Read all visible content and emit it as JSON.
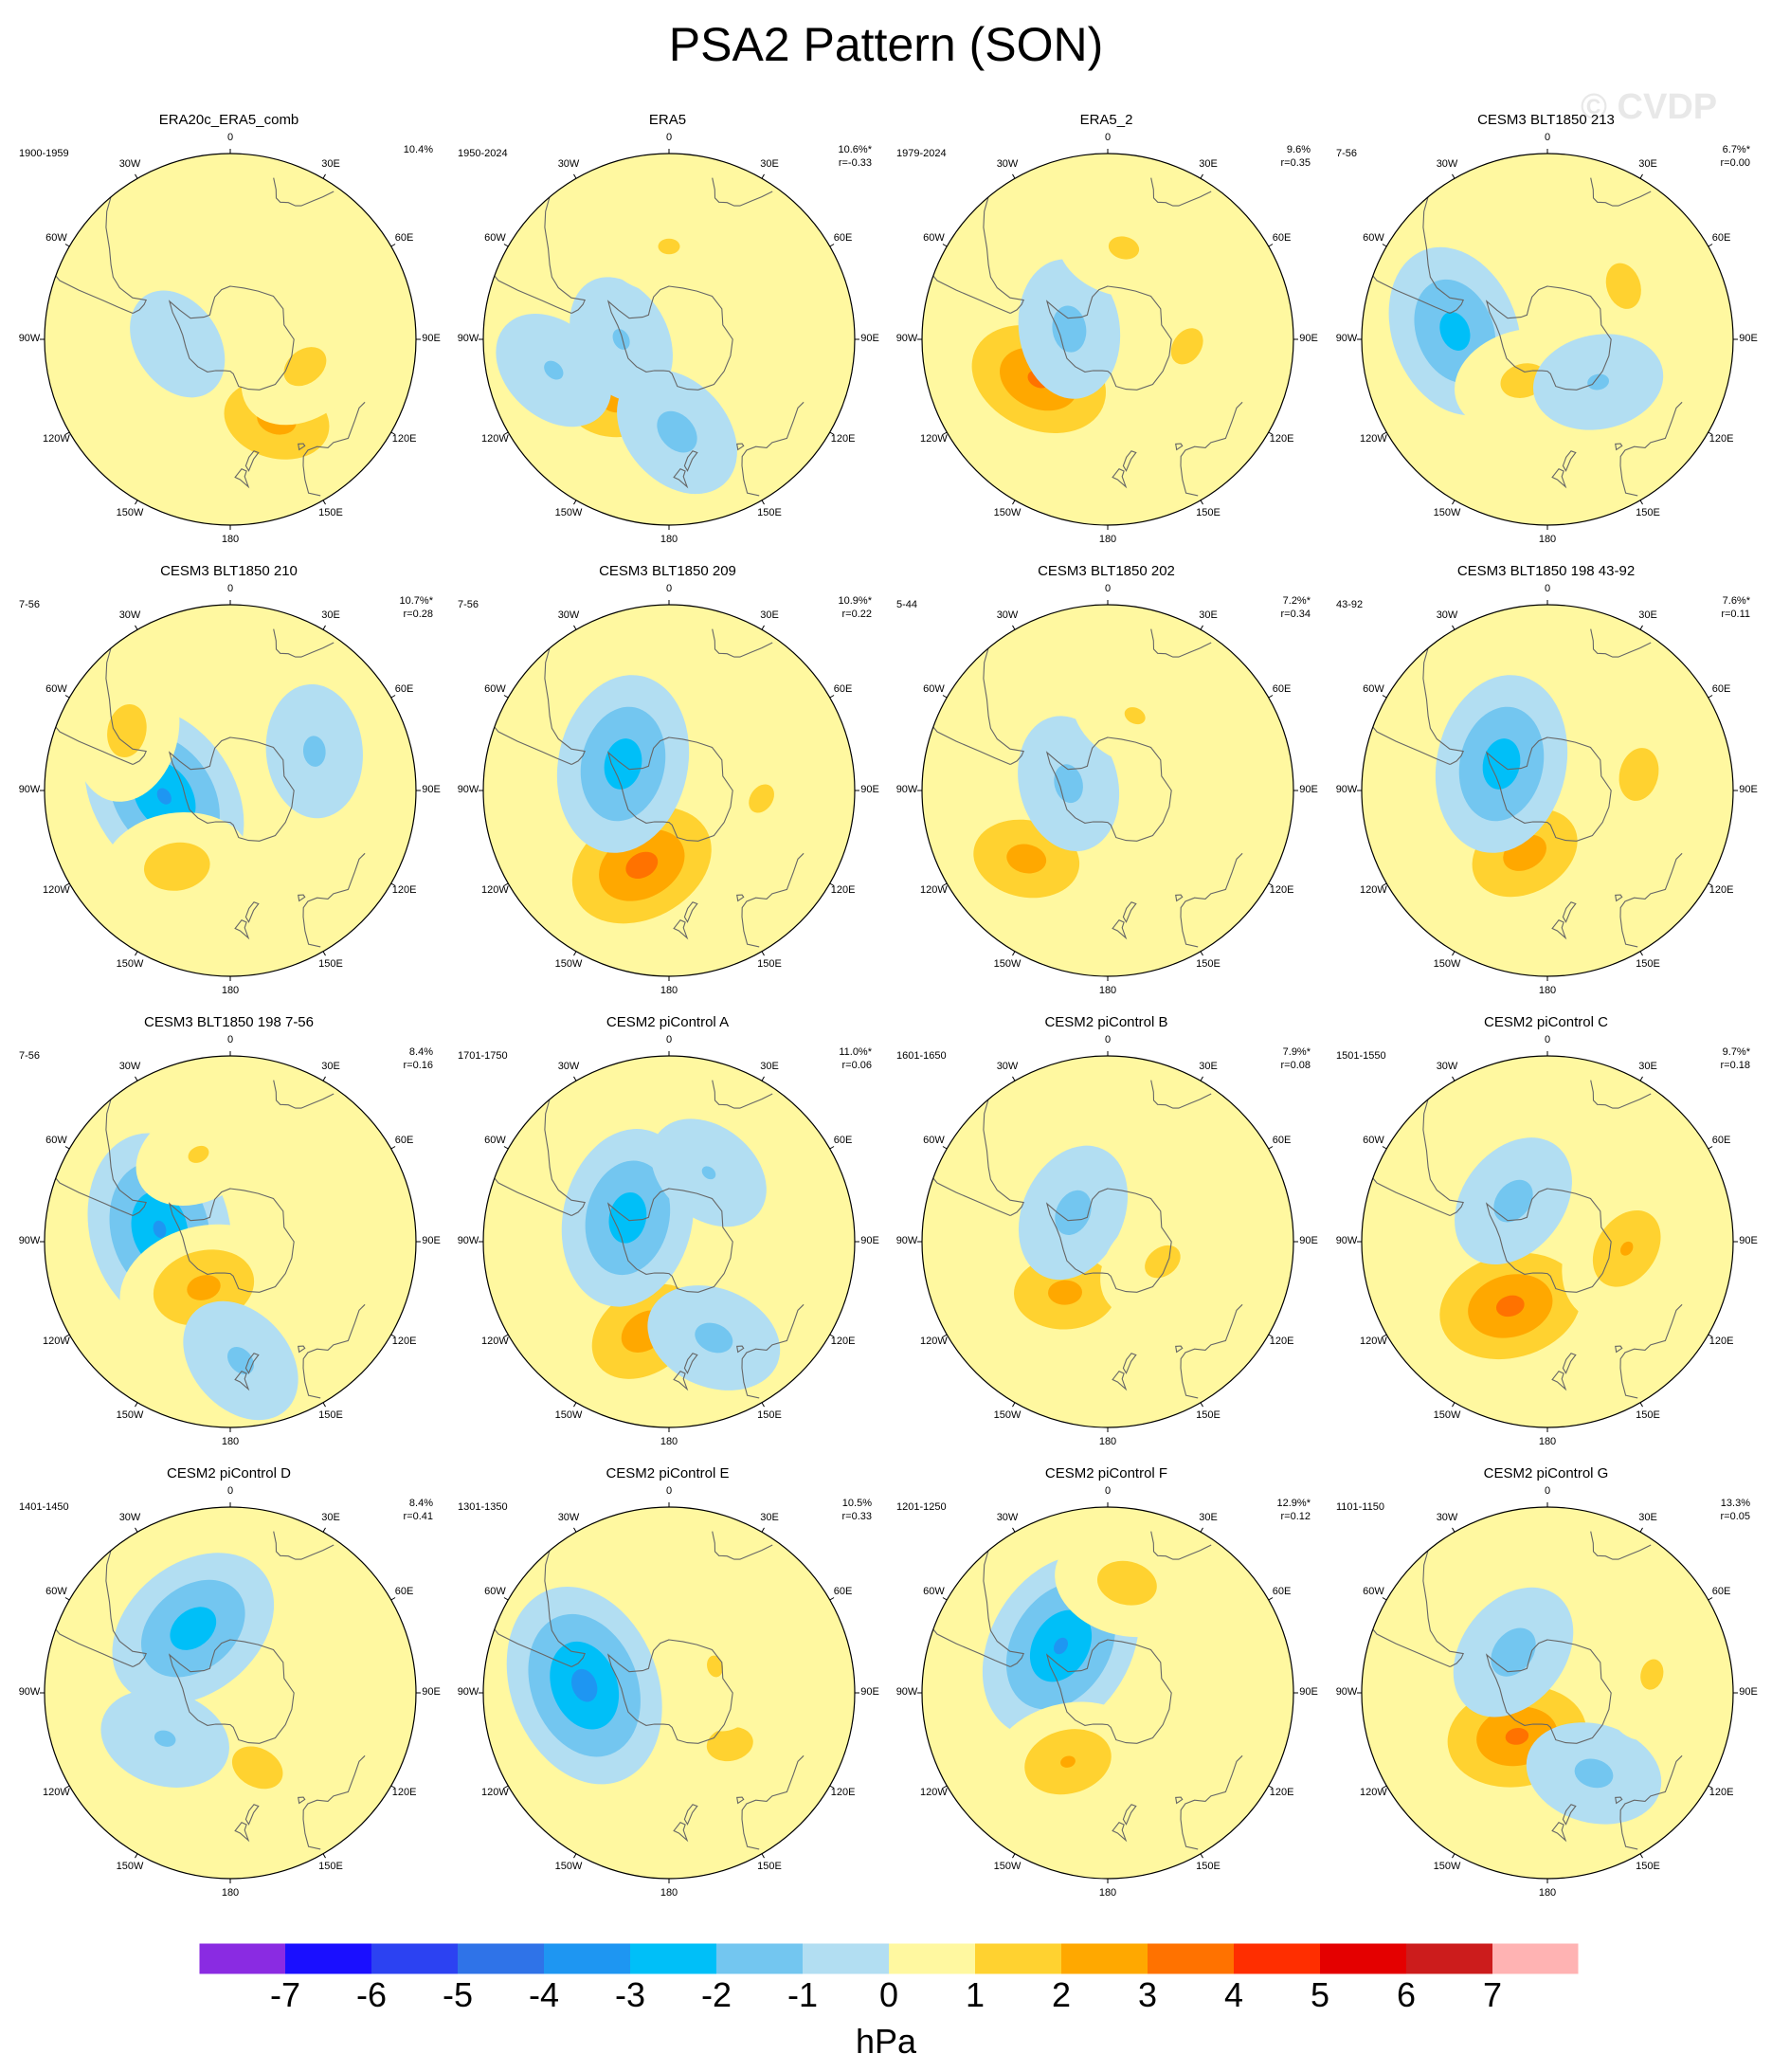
{
  "title": "PSA2 Pattern (SON)",
  "watermark": "© CVDP",
  "colorbar": {
    "units": "hPa",
    "tick_labels": [
      "-7",
      "-6",
      "-5",
      "-4",
      "-3",
      "-2",
      "-1",
      "0",
      "1",
      "2",
      "3",
      "4",
      "5",
      "6",
      "7"
    ],
    "colors": [
      "#8a2be2",
      "#1a0fff",
      "#2c42f2",
      "#2f73e8",
      "#1e96f2",
      "#00bff8",
      "#73c6f0",
      "#b2def2",
      "#fff8a0",
      "#ffd230",
      "#ffa800",
      "#ff7200",
      "#ff2e00",
      "#e40000",
      "#cc1c1c",
      "#ffb3b3"
    ]
  },
  "map": {
    "longitude_labels": [
      "0",
      "30E",
      "60E",
      "90E",
      "120E",
      "150E",
      "180",
      "150W",
      "120W",
      "90W",
      "60W",
      "30W"
    ],
    "land_color": "#666666"
  },
  "chart_data": {
    "type": "polar-contour-map",
    "description_units": "hPa",
    "levels": [
      -7,
      -6,
      -5,
      -4,
      -3,
      -2,
      -1,
      0,
      1,
      2,
      3,
      4,
      5,
      6,
      7
    ],
    "panels": [
      {
        "title": "ERA20c_ERA5_comb",
        "period": "1900-1959",
        "pct": "10.4%",
        "r": "",
        "centers": [
          {
            "lon": 150,
            "lat": -55,
            "value": 2.6
          },
          {
            "lon": 110,
            "lat": -60,
            "value": 1.5
          },
          {
            "lon": -95,
            "lat": -70,
            "value": -0.7
          }
        ]
      },
      {
        "title": "ERA5",
        "period": "1950-2024",
        "pct": "10.6%*",
        "r": "r=-0.33",
        "centers": [
          {
            "lon": -140,
            "lat": -60,
            "value": 2.5
          },
          {
            "lon": 175,
            "lat": -55,
            "value": -1.5
          },
          {
            "lon": -90,
            "lat": -72,
            "value": -1.2
          },
          {
            "lon": -105,
            "lat": -45,
            "value": -1.2
          },
          {
            "lon": 0,
            "lat": -55,
            "value": 1.2
          }
        ]
      },
      {
        "title": "ERA5_2",
        "period": "1979-2024",
        "pct": "9.6%",
        "r": "r=0.35",
        "centers": [
          {
            "lon": -120,
            "lat": -60,
            "value": 3.4
          },
          {
            "lon": -75,
            "lat": -75,
            "value": -1.5
          },
          {
            "lon": 95,
            "lat": -60,
            "value": 1.4
          },
          {
            "lon": 10,
            "lat": -55,
            "value": 1.3
          }
        ]
      },
      {
        "title": "CESM3 BLT1850 213",
        "period": "7-56",
        "pct": "6.7%*",
        "r": "r=0.00",
        "centers": [
          {
            "lon": -85,
            "lat": -55,
            "value": -2.6
          },
          {
            "lon": -150,
            "lat": -72,
            "value": 1.5
          },
          {
            "lon": 55,
            "lat": -55,
            "value": 1.5
          },
          {
            "lon": 130,
            "lat": -65,
            "value": -1.2
          }
        ]
      },
      {
        "title": "CESM3 BLT1850 210",
        "period": "7-56",
        "pct": "10.7%*",
        "r": "r=0.28",
        "centers": [
          {
            "lon": -95,
            "lat": -65,
            "value": -3.3
          },
          {
            "lon": -145,
            "lat": -55,
            "value": 1.8
          },
          {
            "lon": -60,
            "lat": -45,
            "value": 1.6
          },
          {
            "lon": 65,
            "lat": -55,
            "value": -1.3
          }
        ]
      },
      {
        "title": "CESM3 BLT1850 209",
        "period": "7-56",
        "pct": "10.9%*",
        "r": "r=0.22",
        "centers": [
          {
            "lon": -160,
            "lat": -60,
            "value": 3.6
          },
          {
            "lon": -60,
            "lat": -70,
            "value": -2.8
          },
          {
            "lon": 95,
            "lat": -55,
            "value": 1.3
          }
        ]
      },
      {
        "title": "CESM3 BLT1850 202",
        "period": "5-44",
        "pct": "7.2%*",
        "r": "r=0.34",
        "centers": [
          {
            "lon": -130,
            "lat": -50,
            "value": 2.6
          },
          {
            "lon": -80,
            "lat": -75,
            "value": -1.4
          },
          {
            "lon": 20,
            "lat": -60,
            "value": 1.2
          }
        ]
      },
      {
        "title": "CESM3 BLT1850 198 43-92",
        "period": "43-92",
        "pct": "7.6%*",
        "r": "r=0.11",
        "centers": [
          {
            "lon": -160,
            "lat": -65,
            "value": 2.7
          },
          {
            "lon": -60,
            "lat": -70,
            "value": -2.8
          },
          {
            "lon": 80,
            "lat": -55,
            "value": 1.6
          }
        ]
      },
      {
        "title": "CESM3 BLT1850 198 7-56",
        "period": "7-56",
        "pct": "8.4%",
        "r": "r=0.16",
        "centers": [
          {
            "lon": -80,
            "lat": -63,
            "value": -3.3
          },
          {
            "lon": -150,
            "lat": -70,
            "value": 2.5
          },
          {
            "lon": 175,
            "lat": -45,
            "value": -1.3
          },
          {
            "lon": -20,
            "lat": -55,
            "value": 1.2
          }
        ]
      },
      {
        "title": "CESM2 piControl A",
        "period": "1701-1750",
        "pct": "11.0%*",
        "r": "r=0.06",
        "centers": [
          {
            "lon": -165,
            "lat": -55,
            "value": 2.8
          },
          {
            "lon": -60,
            "lat": -72,
            "value": -2.8
          },
          {
            "lon": 155,
            "lat": -50,
            "value": -1.4
          },
          {
            "lon": 30,
            "lat": -60,
            "value": -1.1
          }
        ]
      },
      {
        "title": "CESM2 piControl B",
        "period": "1601-1650",
        "pct": "7.9%*",
        "r": "r=0.08",
        "centers": [
          {
            "lon": -140,
            "lat": -65,
            "value": 2.5
          },
          {
            "lon": -50,
            "lat": -73,
            "value": -1.5
          },
          {
            "lon": 110,
            "lat": -68,
            "value": 1.4
          }
        ]
      },
      {
        "title": "CESM2 piControl C",
        "period": "1501-1550",
        "pct": "9.7%*",
        "r": "r=0.18",
        "centers": [
          {
            "lon": -150,
            "lat": -62,
            "value": 3.5
          },
          {
            "lon": -40,
            "lat": -70,
            "value": -1.5
          },
          {
            "lon": 95,
            "lat": -60,
            "value": 2.1
          }
        ]
      },
      {
        "title": "CESM2 piControl D",
        "period": "1401-1450",
        "pct": "8.4%",
        "r": "r=0.41",
        "centers": [
          {
            "lon": -30,
            "lat": -62,
            "value": -2.8
          },
          {
            "lon": 160,
            "lat": -60,
            "value": 1.6
          },
          {
            "lon": -125,
            "lat": -60,
            "value": -1.2
          }
        ]
      },
      {
        "title": "CESM2 piControl E",
        "period": "1301-1350",
        "pct": "10.5%",
        "r": "r=0.33",
        "centers": [
          {
            "lon": -85,
            "lat": -58,
            "value": -3.6
          },
          {
            "lon": 130,
            "lat": -60,
            "value": 1.5
          },
          {
            "lon": 60,
            "lat": -70,
            "value": 1.2
          }
        ]
      },
      {
        "title": "CESM2 piControl F",
        "period": "1201-1250",
        "pct": "12.9%*",
        "r": "r=0.12",
        "centers": [
          {
            "lon": -45,
            "lat": -65,
            "value": -3.3
          },
          {
            "lon": -150,
            "lat": -60,
            "value": 2.2
          },
          {
            "lon": 10,
            "lat": -48,
            "value": 1.7
          }
        ]
      },
      {
        "title": "CESM2 piControl G",
        "period": "1101-1150",
        "pct": "13.3%",
        "r": "r=0.05",
        "centers": [
          {
            "lon": -145,
            "lat": -70,
            "value": 3.4
          },
          {
            "lon": -40,
            "lat": -70,
            "value": -1.6
          },
          {
            "lon": 150,
            "lat": -55,
            "value": -1.4
          },
          {
            "lon": 80,
            "lat": -50,
            "value": 1.3
          }
        ]
      }
    ]
  }
}
